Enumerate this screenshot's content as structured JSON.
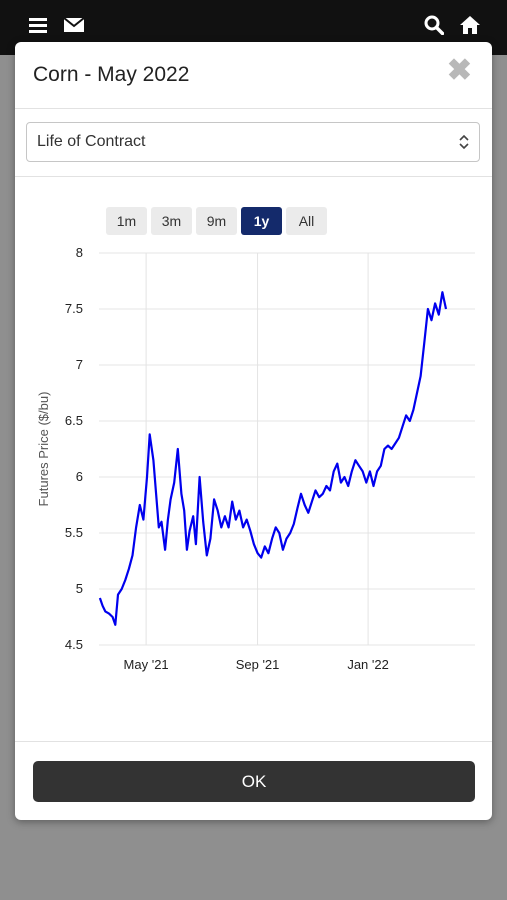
{
  "modal": {
    "title": "Corn - May 2022",
    "close_glyph": "✖"
  },
  "period_select": {
    "value": "Life of Contract"
  },
  "range_buttons": [
    {
      "label": "1m",
      "active": false
    },
    {
      "label": "3m",
      "active": false
    },
    {
      "label": "9m",
      "active": false
    },
    {
      "label": "1y",
      "active": true
    },
    {
      "label": "All",
      "active": false
    }
  ],
  "footer": {
    "ok_label": "OK"
  },
  "icons": [
    "menu-icon",
    "mail-icon",
    "search-icon",
    "home-icon"
  ],
  "colors": {
    "line": "#0000ee",
    "active_button": "#142a6b",
    "topbar": "#111111",
    "ok_button": "#333333"
  },
  "chart_data": {
    "type": "line",
    "ylabel": "Futures Price ($/bu)",
    "xlabel": "",
    "ylim": [
      4.5,
      8
    ],
    "y_ticks": [
      "4.5",
      "5",
      "5.5",
      "6",
      "6.5",
      "7",
      "7.5",
      "8"
    ],
    "x_range": [
      "2021-03-10",
      "2022-04-29"
    ],
    "x_ticks": [
      {
        "date": "2021-05-01",
        "label": "May '21"
      },
      {
        "date": "2021-09-01",
        "label": "Sep '21"
      },
      {
        "date": "2022-01-01",
        "label": "Jan '22"
      }
    ],
    "grid": true,
    "series": [
      {
        "points": [
          [
            "2021-03-11",
            4.92
          ],
          [
            "2021-03-14",
            4.85
          ],
          [
            "2021-03-17",
            4.8
          ],
          [
            "2021-03-21",
            4.78
          ],
          [
            "2021-03-25",
            4.75
          ],
          [
            "2021-03-28",
            4.68
          ],
          [
            "2021-03-31",
            4.95
          ],
          [
            "2021-04-04",
            5.0
          ],
          [
            "2021-04-08",
            5.08
          ],
          [
            "2021-04-12",
            5.18
          ],
          [
            "2021-04-16",
            5.3
          ],
          [
            "2021-04-20",
            5.55
          ],
          [
            "2021-04-24",
            5.75
          ],
          [
            "2021-04-28",
            5.62
          ],
          [
            "2021-05-02",
            6.0
          ],
          [
            "2021-05-05",
            6.38
          ],
          [
            "2021-05-09",
            6.15
          ],
          [
            "2021-05-12",
            5.85
          ],
          [
            "2021-05-15",
            5.55
          ],
          [
            "2021-05-18",
            5.6
          ],
          [
            "2021-05-22",
            5.35
          ],
          [
            "2021-05-25",
            5.62
          ],
          [
            "2021-05-28",
            5.8
          ],
          [
            "2021-06-01",
            5.95
          ],
          [
            "2021-06-05",
            6.25
          ],
          [
            "2021-06-09",
            5.85
          ],
          [
            "2021-06-12",
            5.7
          ],
          [
            "2021-06-15",
            5.35
          ],
          [
            "2021-06-18",
            5.52
          ],
          [
            "2021-06-22",
            5.65
          ],
          [
            "2021-06-25",
            5.4
          ],
          [
            "2021-06-29",
            6.0
          ],
          [
            "2021-07-03",
            5.6
          ],
          [
            "2021-07-07",
            5.3
          ],
          [
            "2021-07-11",
            5.45
          ],
          [
            "2021-07-15",
            5.8
          ],
          [
            "2021-07-19",
            5.7
          ],
          [
            "2021-07-23",
            5.55
          ],
          [
            "2021-07-27",
            5.65
          ],
          [
            "2021-07-31",
            5.55
          ],
          [
            "2021-08-04",
            5.78
          ],
          [
            "2021-08-08",
            5.62
          ],
          [
            "2021-08-12",
            5.7
          ],
          [
            "2021-08-16",
            5.55
          ],
          [
            "2021-08-20",
            5.62
          ],
          [
            "2021-08-24",
            5.52
          ],
          [
            "2021-08-28",
            5.4
          ],
          [
            "2021-09-01",
            5.32
          ],
          [
            "2021-09-05",
            5.28
          ],
          [
            "2021-09-09",
            5.38
          ],
          [
            "2021-09-13",
            5.32
          ],
          [
            "2021-09-17",
            5.45
          ],
          [
            "2021-09-21",
            5.55
          ],
          [
            "2021-09-25",
            5.5
          ],
          [
            "2021-09-29",
            5.35
          ],
          [
            "2021-10-03",
            5.45
          ],
          [
            "2021-10-07",
            5.5
          ],
          [
            "2021-10-11",
            5.58
          ],
          [
            "2021-10-15",
            5.72
          ],
          [
            "2021-10-19",
            5.85
          ],
          [
            "2021-10-23",
            5.75
          ],
          [
            "2021-10-27",
            5.68
          ],
          [
            "2021-10-31",
            5.78
          ],
          [
            "2021-11-04",
            5.88
          ],
          [
            "2021-11-08",
            5.82
          ],
          [
            "2021-11-12",
            5.85
          ],
          [
            "2021-11-16",
            5.92
          ],
          [
            "2021-11-20",
            5.88
          ],
          [
            "2021-11-24",
            6.05
          ],
          [
            "2021-11-28",
            6.12
          ],
          [
            "2021-12-02",
            5.95
          ],
          [
            "2021-12-06",
            6.0
          ],
          [
            "2021-12-10",
            5.92
          ],
          [
            "2021-12-14",
            6.05
          ],
          [
            "2021-12-18",
            6.15
          ],
          [
            "2021-12-22",
            6.1
          ],
          [
            "2021-12-26",
            6.05
          ],
          [
            "2021-12-30",
            5.95
          ],
          [
            "2022-01-03",
            6.05
          ],
          [
            "2022-01-07",
            5.92
          ],
          [
            "2022-01-11",
            6.05
          ],
          [
            "2022-01-15",
            6.1
          ],
          [
            "2022-01-19",
            6.25
          ],
          [
            "2022-01-23",
            6.28
          ],
          [
            "2022-01-27",
            6.25
          ],
          [
            "2022-01-31",
            6.3
          ],
          [
            "2022-02-04",
            6.35
          ],
          [
            "2022-02-08",
            6.45
          ],
          [
            "2022-02-12",
            6.55
          ],
          [
            "2022-02-16",
            6.5
          ],
          [
            "2022-02-20",
            6.6
          ],
          [
            "2022-02-24",
            6.75
          ],
          [
            "2022-02-28",
            6.9
          ],
          [
            "2022-03-04",
            7.2
          ],
          [
            "2022-03-08",
            7.5
          ],
          [
            "2022-03-12",
            7.4
          ],
          [
            "2022-03-16",
            7.55
          ],
          [
            "2022-03-20",
            7.45
          ],
          [
            "2022-03-24",
            7.65
          ],
          [
            "2022-03-28",
            7.5
          ]
        ]
      }
    ]
  }
}
